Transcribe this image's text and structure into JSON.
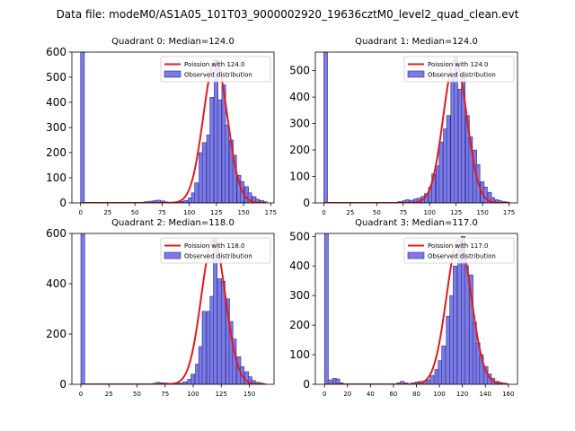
{
  "suptitle": "Data file: modeM0/AS1A05_101T03_9000002920_19636cztM0_level2_quad_clean.evt",
  "colors": {
    "hist_fill": "#7b7be8",
    "hist_edge": "#2b2b8c",
    "fit_line": "#e41a1c"
  },
  "chart_data": [
    {
      "type": "bar",
      "title": "Quadrant 0: Median=124.0",
      "legend": {
        "line": "Poission with 124.0",
        "hist": "Observed distribution",
        "placement": "top-right"
      },
      "xlim": [
        -8,
        178
      ],
      "ylim": [
        0,
        600
      ],
      "xticks": [
        0,
        25,
        50,
        75,
        100,
        125,
        150,
        175
      ],
      "yticks": [
        0,
        100,
        200,
        300,
        400,
        500,
        600
      ],
      "bin_width": 3.5,
      "bins": [
        [
          0,
          600
        ],
        [
          56,
          3
        ],
        [
          59,
          5
        ],
        [
          63,
          7
        ],
        [
          67,
          10
        ],
        [
          70,
          11
        ],
        [
          74,
          8
        ],
        [
          77,
          4
        ],
        [
          81,
          3
        ],
        [
          85,
          4
        ],
        [
          88,
          5
        ],
        [
          92,
          6
        ],
        [
          95,
          10
        ],
        [
          99,
          20
        ],
        [
          102,
          40
        ],
        [
          105,
          80
        ],
        [
          109,
          200
        ],
        [
          112,
          240
        ],
        [
          116,
          270
        ],
        [
          119,
          420
        ],
        [
          123,
          570
        ],
        [
          126,
          410
        ],
        [
          130,
          470
        ],
        [
          133,
          310
        ],
        [
          137,
          250
        ],
        [
          140,
          190
        ],
        [
          144,
          110
        ],
        [
          147,
          85
        ],
        [
          151,
          65
        ],
        [
          154,
          40
        ],
        [
          158,
          25
        ],
        [
          161,
          15
        ],
        [
          165,
          10
        ],
        [
          168,
          5
        ]
      ],
      "poisson_mean": 124.0,
      "poisson_amp": 567,
      "poisson_sigma": 11.1,
      "curve_range": [
        0,
        170
      ]
    },
    {
      "type": "bar",
      "title": "Quadrant 1: Median=124.0",
      "legend": {
        "line": "Poission with 124.0",
        "hist": "Observed distribution",
        "placement": "top-right"
      },
      "xlim": [
        -8,
        183
      ],
      "ylim": [
        0,
        570
      ],
      "xticks": [
        0,
        25,
        50,
        75,
        100,
        125,
        150,
        175
      ],
      "yticks": [
        0,
        100,
        200,
        300,
        400,
        500
      ],
      "bin_width": 3.5,
      "bins": [
        [
          0,
          570
        ],
        [
          70,
          5
        ],
        [
          74,
          8
        ],
        [
          77,
          12
        ],
        [
          81,
          10
        ],
        [
          85,
          15
        ],
        [
          88,
          18
        ],
        [
          92,
          25
        ],
        [
          95,
          35
        ],
        [
          99,
          60
        ],
        [
          102,
          110
        ],
        [
          106,
          140
        ],
        [
          109,
          230
        ],
        [
          113,
          280
        ],
        [
          116,
          330
        ],
        [
          120,
          480
        ],
        [
          123,
          550
        ],
        [
          127,
          430
        ],
        [
          130,
          480
        ],
        [
          134,
          330
        ],
        [
          137,
          250
        ],
        [
          141,
          200
        ],
        [
          144,
          145
        ],
        [
          148,
          80
        ],
        [
          151,
          60
        ],
        [
          155,
          40
        ],
        [
          158,
          20
        ],
        [
          162,
          12
        ],
        [
          165,
          8
        ],
        [
          169,
          5
        ],
        [
          172,
          3
        ]
      ],
      "poisson_mean": 124.0,
      "poisson_amp": 540,
      "poisson_sigma": 11.1,
      "curve_range": [
        0,
        175
      ]
    },
    {
      "type": "bar",
      "title": "Quadrant 2: Median=118.0",
      "legend": {
        "line": "Poission with 118.0",
        "hist": "Observed distribution",
        "placement": "top-right"
      },
      "xlim": [
        -8,
        172
      ],
      "ylim": [
        0,
        600
      ],
      "xticks": [
        0,
        25,
        50,
        75,
        100,
        125,
        150
      ],
      "yticks": [
        0,
        200,
        400,
        600
      ],
      "bin_width": 3.4,
      "bins": [
        [
          0,
          600
        ],
        [
          64,
          4
        ],
        [
          67,
          8
        ],
        [
          71,
          6
        ],
        [
          74,
          5
        ],
        [
          78,
          4
        ],
        [
          81,
          3
        ],
        [
          85,
          4
        ],
        [
          88,
          5
        ],
        [
          91,
          10
        ],
        [
          95,
          20
        ],
        [
          98,
          40
        ],
        [
          102,
          80
        ],
        [
          105,
          150
        ],
        [
          108,
          290
        ],
        [
          112,
          290
        ],
        [
          115,
          350
        ],
        [
          118,
          580
        ],
        [
          122,
          420
        ],
        [
          125,
          410
        ],
        [
          129,
          340
        ],
        [
          132,
          250
        ],
        [
          135,
          180
        ],
        [
          139,
          110
        ],
        [
          142,
          70
        ],
        [
          146,
          50
        ],
        [
          149,
          30
        ],
        [
          152,
          15
        ],
        [
          156,
          8
        ],
        [
          159,
          5
        ]
      ],
      "poisson_mean": 118.0,
      "poisson_amp": 575,
      "poisson_sigma": 10.8,
      "curve_range": [
        0,
        165
      ]
    },
    {
      "type": "bar",
      "title": "Quadrant 3: Median=117.0",
      "legend": {
        "line": "Poission with 117.0",
        "hist": "Observed distribution",
        "placement": "top-right"
      },
      "xlim": [
        -8,
        168
      ],
      "ylim": [
        0,
        510
      ],
      "xticks": [
        0,
        20,
        40,
        60,
        80,
        100,
        120,
        140,
        160
      ],
      "yticks": [
        0,
        100,
        200,
        300,
        400,
        500
      ],
      "bin_width": 3.3,
      "bins": [
        [
          0,
          510
        ],
        [
          3,
          15
        ],
        [
          7,
          20
        ],
        [
          10,
          18
        ],
        [
          13,
          5
        ],
        [
          63,
          5
        ],
        [
          66,
          10
        ],
        [
          69,
          5
        ],
        [
          73,
          3
        ],
        [
          76,
          5
        ],
        [
          79,
          8
        ],
        [
          82,
          10
        ],
        [
          86,
          12
        ],
        [
          89,
          15
        ],
        [
          92,
          30
        ],
        [
          96,
          50
        ],
        [
          99,
          80
        ],
        [
          102,
          130
        ],
        [
          106,
          230
        ],
        [
          109,
          300
        ],
        [
          112,
          400
        ],
        [
          116,
          470
        ],
        [
          119,
          500
        ],
        [
          122,
          400
        ],
        [
          126,
          370
        ],
        [
          129,
          210
        ],
        [
          132,
          140
        ],
        [
          135,
          100
        ],
        [
          139,
          60
        ],
        [
          142,
          35
        ],
        [
          145,
          20
        ],
        [
          149,
          10
        ],
        [
          152,
          6
        ],
        [
          155,
          4
        ]
      ],
      "poisson_mean": 117.0,
      "poisson_amp": 490,
      "poisson_sigma": 10.8,
      "curve_range": [
        0,
        160
      ]
    }
  ]
}
